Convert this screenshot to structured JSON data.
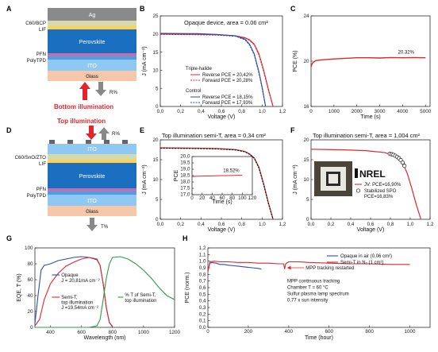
{
  "colors": {
    "red": "#e0262c",
    "blue": "#2a4fa8",
    "green": "#2f9a4a",
    "black": "#111111",
    "ag": "#8a8a8a",
    "etl": "#d8d8b0",
    "lif": "#ffd24d",
    "perovskite": "#1a6fc0",
    "pfn": "#c26fb0",
    "polytpd": "#4aa0e6",
    "ito": "#8fc8f2",
    "glass": "#f6c7a8",
    "arrow_red": "#e0262c",
    "arrow_gray": "#888888"
  },
  "icon": "nrel-logo",
  "panels": {
    "A": {
      "letter": "A",
      "layers": [
        "Ag",
        "C60/BCP",
        "LIF",
        "Perovskite",
        "PFN",
        "PolyTPD",
        "ITO",
        "Glass"
      ],
      "r_label": "R%",
      "illumination": "Bottom illumination"
    },
    "B": {
      "letter": "B"
    },
    "C": {
      "letter": "C"
    },
    "D": {
      "letter": "D",
      "illumination": "Top illumination",
      "r_label": "R%",
      "t_label": "T%",
      "layers": [
        "ITO",
        "C60/SnO/ZTO",
        "LIF",
        "Perovskite",
        "PFN",
        "PolyTPD",
        "ITO",
        "Glass"
      ]
    },
    "E": {
      "letter": "E"
    },
    "F": {
      "letter": "F",
      "logo_text": "NREL"
    },
    "G": {
      "letter": "G"
    },
    "H": {
      "letter": "H"
    }
  },
  "chart_data": [
    {
      "id": "B",
      "type": "line",
      "title": "Opaque device, area = 0.06 cm²",
      "xlabel": "Voltage (V)",
      "ylabel": "J (mA cm⁻²)",
      "xlim": [
        0,
        1.3
      ],
      "ylim": [
        0,
        25
      ],
      "xticks": [
        "0,0",
        "0,2",
        "0,4",
        "0,6",
        "0,8",
        "1,0",
        "1,2"
      ],
      "yticks": [
        "0",
        "5",
        "10",
        "15",
        "20",
        "25"
      ],
      "legend_groups": [
        {
          "heading": "Triple-halide",
          "color": "#e0262c"
        },
        {
          "heading": "Control",
          "color": "#2a4fa8"
        }
      ],
      "series": [
        {
          "name": "Reverse  PCE = 20,42%",
          "group": "Triple-halide",
          "style": "solid",
          "color": "#e0262c",
          "x": [
            0,
            0.2,
            0.4,
            0.6,
            0.8,
            0.9,
            0.95,
            1.0,
            1.05,
            1.1,
            1.15,
            1.2
          ],
          "y": [
            20.0,
            19.95,
            19.9,
            19.8,
            19.5,
            19.0,
            18.4,
            17.2,
            14.5,
            10.0,
            4.8,
            0.0
          ]
        },
        {
          "name": "Forward  PCE = 20,28%",
          "group": "Triple-halide",
          "style": "dashed",
          "color": "#e0262c",
          "x": [
            0,
            0.2,
            0.4,
            0.6,
            0.8,
            0.9,
            0.95,
            1.0,
            1.05,
            1.1,
            1.15,
            1.2
          ],
          "y": [
            19.9,
            19.85,
            19.8,
            19.7,
            19.4,
            18.9,
            18.2,
            17.0,
            14.2,
            9.7,
            4.5,
            0.0
          ]
        },
        {
          "name": "Reverse  PCE = 18,15%",
          "group": "Control",
          "style": "solid",
          "color": "#2a4fa8",
          "x": [
            0,
            0.2,
            0.4,
            0.6,
            0.8,
            0.9,
            0.95,
            1.0,
            1.05,
            1.09,
            1.12
          ],
          "y": [
            20.2,
            20.15,
            20.1,
            19.9,
            19.5,
            18.6,
            17.2,
            14.5,
            9.5,
            4.5,
            0.0
          ]
        },
        {
          "name": "Forward  PCE = 17,93%",
          "group": "Control",
          "style": "dashed",
          "color": "#2a4fa8",
          "x": [
            0,
            0.2,
            0.4,
            0.6,
            0.8,
            0.9,
            0.95,
            1.0,
            1.05,
            1.09,
            1.12
          ],
          "y": [
            20.1,
            20.05,
            20.0,
            19.8,
            19.4,
            18.4,
            17.0,
            14.2,
            9.2,
            4.2,
            0.0
          ]
        }
      ]
    },
    {
      "id": "C",
      "type": "line",
      "xlabel": "Time (s)",
      "ylabel": "PCE (%)",
      "xlim": [
        0,
        5200
      ],
      "ylim": [
        16,
        24
      ],
      "xticks": [
        "0",
        "1000",
        "2000",
        "3000",
        "4000",
        "5000"
      ],
      "yticks": [
        "16",
        "20",
        "24"
      ],
      "annotation": "20.32%",
      "series": [
        {
          "name": "",
          "color": "#e0262c",
          "x": [
            0,
            40,
            100,
            200,
            400,
            700,
            1000,
            1500,
            2000,
            2500,
            3000,
            3500,
            4000,
            4500,
            5000
          ],
          "y": [
            19.5,
            19.75,
            19.9,
            20.05,
            20.1,
            20.15,
            20.2,
            20.25,
            20.3,
            20.3,
            20.28,
            20.32,
            20.3,
            20.32,
            20.3
          ]
        }
      ]
    },
    {
      "id": "E",
      "type": "line",
      "title": "Top illumination semi-T, area = 0,34 cm²",
      "xlabel": "Voltage (V)",
      "ylabel": "J (mA cm⁻²)",
      "xlim": [
        0,
        1.3
      ],
      "ylim": [
        0,
        22
      ],
      "xticks": [
        "0,0",
        "0,2",
        "0,4",
        "0,6",
        "0,8",
        "1,0",
        "1,2"
      ],
      "yticks": [
        "0",
        "5",
        "10",
        "15",
        "20"
      ],
      "series": [
        {
          "name": "Reverse",
          "style": "solid",
          "color": "#e0262c",
          "x": [
            0,
            0.2,
            0.4,
            0.6,
            0.8,
            0.9,
            0.95,
            1.0,
            1.05,
            1.1,
            1.15,
            1.2
          ],
          "y": [
            19.8,
            19.75,
            19.7,
            19.6,
            19.3,
            18.8,
            18.1,
            17.0,
            14.4,
            9.8,
            4.6,
            0.0
          ]
        },
        {
          "name": "Forward",
          "style": "dashed",
          "color": "#111111",
          "x": [
            0,
            0.2,
            0.4,
            0.6,
            0.8,
            0.9,
            0.95,
            1.0,
            1.05,
            1.1,
            1.15,
            1.2
          ],
          "y": [
            19.7,
            19.65,
            19.6,
            19.5,
            19.2,
            18.7,
            18.0,
            16.9,
            14.2,
            9.6,
            4.4,
            0.0
          ]
        }
      ],
      "inset": {
        "type": "line",
        "xlabel": "Time (s)",
        "ylabel": "PCE",
        "xlim": [
          0,
          120
        ],
        "ylim": [
          17.0,
          20.0
        ],
        "xticks": [
          "0",
          "20",
          "40",
          "60",
          "80",
          "100",
          "120"
        ],
        "yticks": [
          "17,0",
          "17,5",
          "18,0",
          "18,5",
          "19,0",
          "19,5",
          "20,0"
        ],
        "annotation": "18,52%",
        "series": [
          {
            "name": "",
            "color": "#e0262c",
            "x": [
              0,
              10,
              20,
              30,
              40,
              50,
              60,
              70,
              80,
              90,
              100
            ],
            "y": [
              18.42,
              18.45,
              18.46,
              18.47,
              18.48,
              18.49,
              18.5,
              18.5,
              18.51,
              18.52,
              18.52
            ]
          }
        ]
      }
    },
    {
      "id": "F",
      "type": "line",
      "title": "Top illumination semi-T, area = 1,004 cm²",
      "xlabel": "Voltage (V)",
      "ylabel": "J (mA cm⁻²)",
      "xlim": [
        0,
        1.3
      ],
      "ylim": [
        0,
        22
      ],
      "xticks": [
        "0,0",
        "0,2",
        "0,4",
        "0,6",
        "0,8",
        "1,0",
        "1,2"
      ],
      "yticks": [
        "0",
        "5",
        "10",
        "15",
        "20"
      ],
      "series": [
        {
          "name": "JV: PCE=16,90%",
          "style": "line",
          "color": "#e0262c",
          "x": [
            0,
            0.2,
            0.4,
            0.6,
            0.8,
            0.9,
            0.95,
            1.0,
            1.05,
            1.1,
            1.15,
            1.2
          ],
          "y": [
            19.4,
            19.3,
            19.2,
            19.0,
            18.5,
            17.8,
            17.0,
            15.6,
            12.8,
            8.6,
            4.0,
            0.0
          ]
        },
        {
          "name": "Stabilized SPO\nPCE=16,83%",
          "style": "markers",
          "color": "#111111",
          "x": [
            0.86,
            0.88,
            0.9,
            0.92,
            0.94,
            0.96,
            0.98,
            1.0,
            1.02
          ],
          "y": [
            18.1,
            18.0,
            17.85,
            17.6,
            17.3,
            16.9,
            16.4,
            15.7,
            14.8
          ]
        }
      ]
    },
    {
      "id": "G",
      "type": "line",
      "xlabel": "Wavelength (nm)",
      "ylabel": "EQE, T (%)",
      "xlim": [
        300,
        1200
      ],
      "ylim": [
        0,
        100
      ],
      "xticks": [
        "400",
        "600",
        "800",
        "1000",
        "1200"
      ],
      "yticks": [
        "0",
        "20",
        "40",
        "60",
        "80",
        "100"
      ],
      "series": [
        {
          "name": "Opaque\nJ = 20,81mA cm⁻²",
          "color": "#2a4fa8",
          "x": [
            300,
            320,
            340,
            360,
            400,
            450,
            500,
            550,
            600,
            650,
            700,
            720,
            740,
            760,
            780,
            800
          ],
          "y": [
            5,
            40,
            72,
            78,
            80,
            84,
            86,
            88,
            89,
            88,
            85,
            78,
            55,
            25,
            6,
            1
          ]
        },
        {
          "name": "Semi-T,\ntop illumination\nJ =19,54mA cm⁻²",
          "color": "#e0262c",
          "x": [
            300,
            330,
            360,
            400,
            450,
            500,
            550,
            600,
            650,
            700,
            720,
            740,
            760,
            780,
            800
          ],
          "y": [
            2,
            10,
            35,
            55,
            68,
            77,
            82,
            86,
            88,
            86,
            78,
            55,
            25,
            6,
            1
          ]
        },
        {
          "name": "% T of Semi-T,\ntop illumination",
          "color": "#2f9a4a",
          "x": [
            300,
            350,
            400,
            450,
            500,
            550,
            600,
            650,
            700,
            720,
            740,
            760,
            780,
            800,
            850,
            900,
            950,
            1000,
            1050,
            1100,
            1150,
            1200
          ],
          "y": [
            0,
            0,
            0,
            0,
            0,
            0,
            0,
            0,
            2,
            10,
            35,
            62,
            80,
            88,
            89,
            86,
            80,
            72,
            62,
            50,
            40,
            35
          ]
        }
      ]
    },
    {
      "id": "H",
      "type": "line",
      "xlabel": "Time (hour)",
      "ylabel": "PCE (norm.)",
      "xlim": [
        0,
        1100
      ],
      "ylim": [
        0.0,
        1.2
      ],
      "xticks": [
        "0",
        "200",
        "400",
        "600",
        "800",
        "1000"
      ],
      "yticks": [
        "0,0",
        "0,1",
        "0,2",
        "0,3",
        "0,4",
        "0,5",
        "0,6",
        "0,7",
        "0,8",
        "0,9",
        "1,0",
        "1,1",
        "1,2"
      ],
      "annotations": [
        "MPP tracking restarted"
      ],
      "notes": [
        "MPP continuous tracking",
        "Chamber T = 60 °C",
        "Sulfur plasma lamp spectrum",
        "0.77 x sun intensity"
      ],
      "series": [
        {
          "name": "Opaque in air (0,06 cm²)",
          "color": "#2a4fa8",
          "x": [
            0,
            10,
            20,
            40,
            60,
            80,
            100,
            130,
            160,
            190,
            220,
            250,
            265
          ],
          "y": [
            0.86,
            0.97,
            0.98,
            0.97,
            0.95,
            0.95,
            0.94,
            0.93,
            0.92,
            0.91,
            0.9,
            0.89,
            0.88
          ]
        },
        {
          "name": "Semi-T in N₂ (1 cm²)",
          "color": "#e0262c",
          "x": [
            0,
            10,
            30,
            60,
            100,
            150,
            200,
            250,
            300,
            350,
            375,
            380,
            385,
            400,
            450,
            500,
            600,
            700,
            800,
            900,
            1000
          ],
          "y": [
            0.84,
            0.99,
            1.0,
            0.99,
            0.99,
            0.98,
            0.98,
            0.97,
            0.97,
            0.96,
            0.96,
            0.88,
            0.96,
            0.99,
            0.99,
            0.98,
            0.97,
            0.96,
            0.96,
            0.95,
            0.95
          ]
        }
      ]
    }
  ]
}
